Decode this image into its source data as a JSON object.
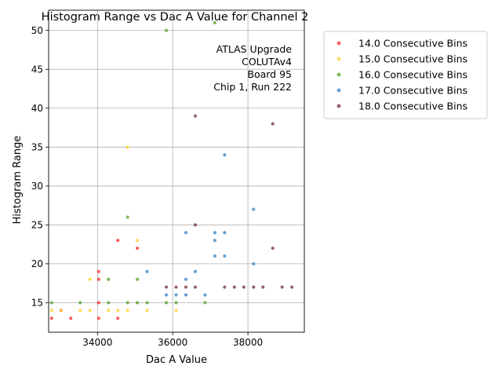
{
  "chart_data": {
    "type": "scatter",
    "title": "Histogram Range vs Dac A Value for Channel 2",
    "xlabel": "Dac A Value",
    "ylabel": "Histogram Range",
    "xlim": [
      32700,
      39500
    ],
    "ylim": [
      11.2,
      52.6
    ],
    "xticks": [
      34000,
      36000,
      38000
    ],
    "xtick_labels": [
      "34000",
      "36000",
      "38000"
    ],
    "yticks": [
      15,
      20,
      25,
      30,
      35,
      40,
      45,
      50
    ],
    "ytick_labels": [
      "15",
      "20",
      "25",
      "30",
      "35",
      "40",
      "45",
      "50"
    ],
    "grid": true,
    "legend_position": "outside-right",
    "annotation": [
      "ATLAS Upgrade",
      "COLUTAv4",
      "Board 95",
      "Chip 1, Run 222"
    ],
    "series": [
      {
        "name": "14.0 Consecutive Bins",
        "color": "#ff3333",
        "points": [
          [
            32780,
            13
          ],
          [
            33030,
            14
          ],
          [
            33290,
            13
          ],
          [
            34030,
            13
          ],
          [
            34030,
            15
          ],
          [
            34030,
            18
          ],
          [
            34030,
            19
          ],
          [
            34540,
            13
          ],
          [
            34540,
            23
          ],
          [
            35060,
            22
          ]
        ]
      },
      {
        "name": "15.0 Consecutive Bins",
        "color": "#ffd433",
        "points": [
          [
            32780,
            14
          ],
          [
            33030,
            14
          ],
          [
            33540,
            14
          ],
          [
            33800,
            14
          ],
          [
            33800,
            18
          ],
          [
            34290,
            14
          ],
          [
            34540,
            14
          ],
          [
            34800,
            14
          ],
          [
            34800,
            35
          ],
          [
            35060,
            23
          ],
          [
            35320,
            14
          ],
          [
            36090,
            14
          ]
        ]
      },
      {
        "name": "16.0 Consecutive Bins",
        "color": "#5fa534",
        "points": [
          [
            32780,
            15
          ],
          [
            33540,
            15
          ],
          [
            34290,
            15
          ],
          [
            34290,
            18
          ],
          [
            34800,
            15
          ],
          [
            34800,
            26
          ],
          [
            35060,
            15
          ],
          [
            35060,
            18
          ],
          [
            35320,
            15
          ],
          [
            35830,
            15
          ],
          [
            35830,
            50
          ],
          [
            36090,
            15
          ],
          [
            36860,
            15
          ],
          [
            37120,
            51
          ]
        ]
      },
      {
        "name": "17.0 Consecutive Bins",
        "color": "#3f88c5",
        "points": [
          [
            35320,
            19
          ],
          [
            35830,
            16
          ],
          [
            36090,
            16
          ],
          [
            36350,
            16
          ],
          [
            36350,
            18
          ],
          [
            36350,
            24
          ],
          [
            36600,
            19
          ],
          [
            36860,
            16
          ],
          [
            37120,
            21
          ],
          [
            37120,
            23
          ],
          [
            37120,
            24
          ],
          [
            37380,
            21
          ],
          [
            37380,
            24
          ],
          [
            37380,
            34
          ],
          [
            38150,
            20
          ],
          [
            38150,
            27
          ]
        ]
      },
      {
        "name": "18.0 Consecutive Bins",
        "color": "#7a3a4a",
        "points": [
          [
            35830,
            17
          ],
          [
            36090,
            17
          ],
          [
            36350,
            17
          ],
          [
            36600,
            17
          ],
          [
            36600,
            25
          ],
          [
            36600,
            39
          ],
          [
            37380,
            17
          ],
          [
            37640,
            17
          ],
          [
            37890,
            17
          ],
          [
            38150,
            17
          ],
          [
            38400,
            17
          ],
          [
            38660,
            22
          ],
          [
            38660,
            38
          ],
          [
            38910,
            17
          ],
          [
            39170,
            17
          ]
        ]
      }
    ]
  }
}
